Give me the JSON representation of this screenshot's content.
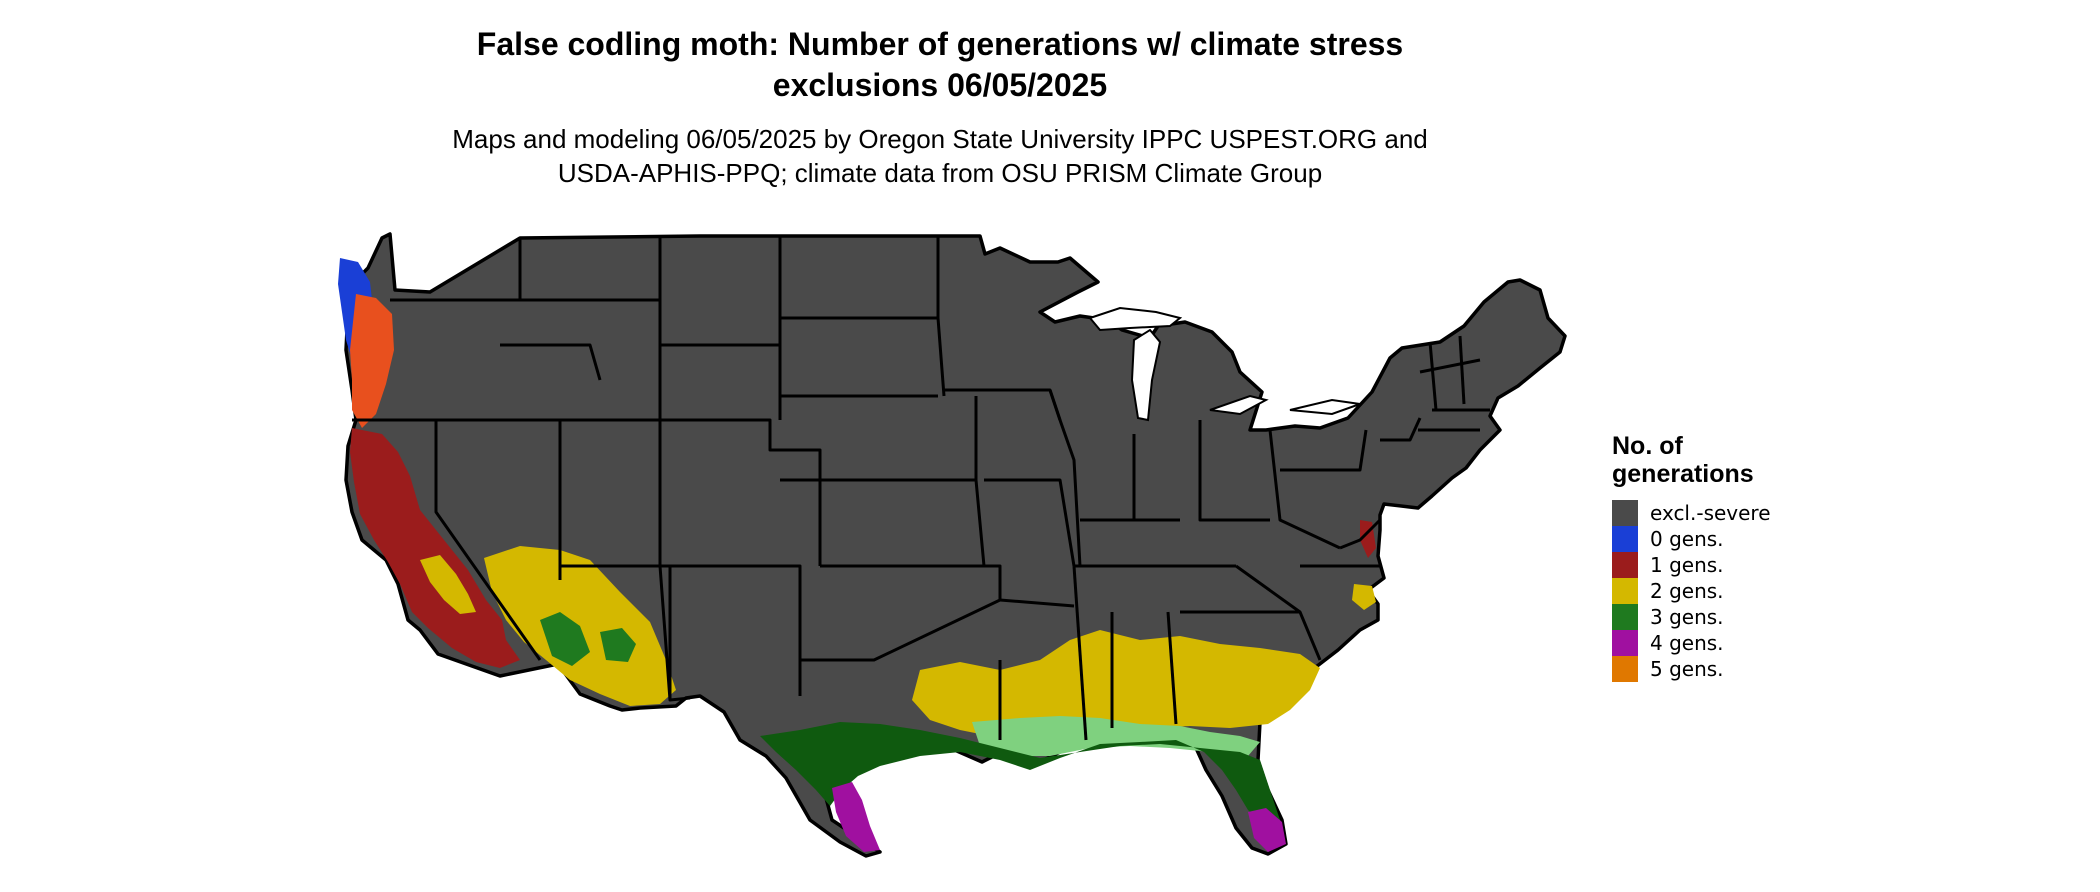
{
  "map": {
    "title_line1": "False codling moth: Number of generations w/ climate stress",
    "title_line2": "exclusions 06/05/2025",
    "subtitle_line1": "Maps and modeling 06/05/2025 by Oregon State University IPPC USPEST.ORG and",
    "subtitle_line2": "USDA-APHIS-PPQ; climate data from OSU PRISM Climate Group",
    "region": "contiguous United States",
    "base_color": "#4a4a4a"
  },
  "legend": {
    "title_line1": "No. of",
    "title_line2": "generations",
    "items": [
      {
        "label": "excl.-severe",
        "color": "#4a4a4a"
      },
      {
        "label": "0 gens.",
        "color": "#1a3fd6"
      },
      {
        "label": "1 gens.",
        "color": "#9b1c1c"
      },
      {
        "label": "2 gens.",
        "color": "#d4b800"
      },
      {
        "label": "3 gens.",
        "color": "#1f7a1f"
      },
      {
        "label": "4 gens.",
        "color": "#a010a0"
      },
      {
        "label": "5 gens.",
        "color": "#e07800"
      }
    ]
  },
  "overlay_colors": {
    "coast_orange": "#e8501e",
    "bright_yellow": "#f0e000",
    "dark_green": "#0f5a0f",
    "light_green": "#7fd17f"
  }
}
